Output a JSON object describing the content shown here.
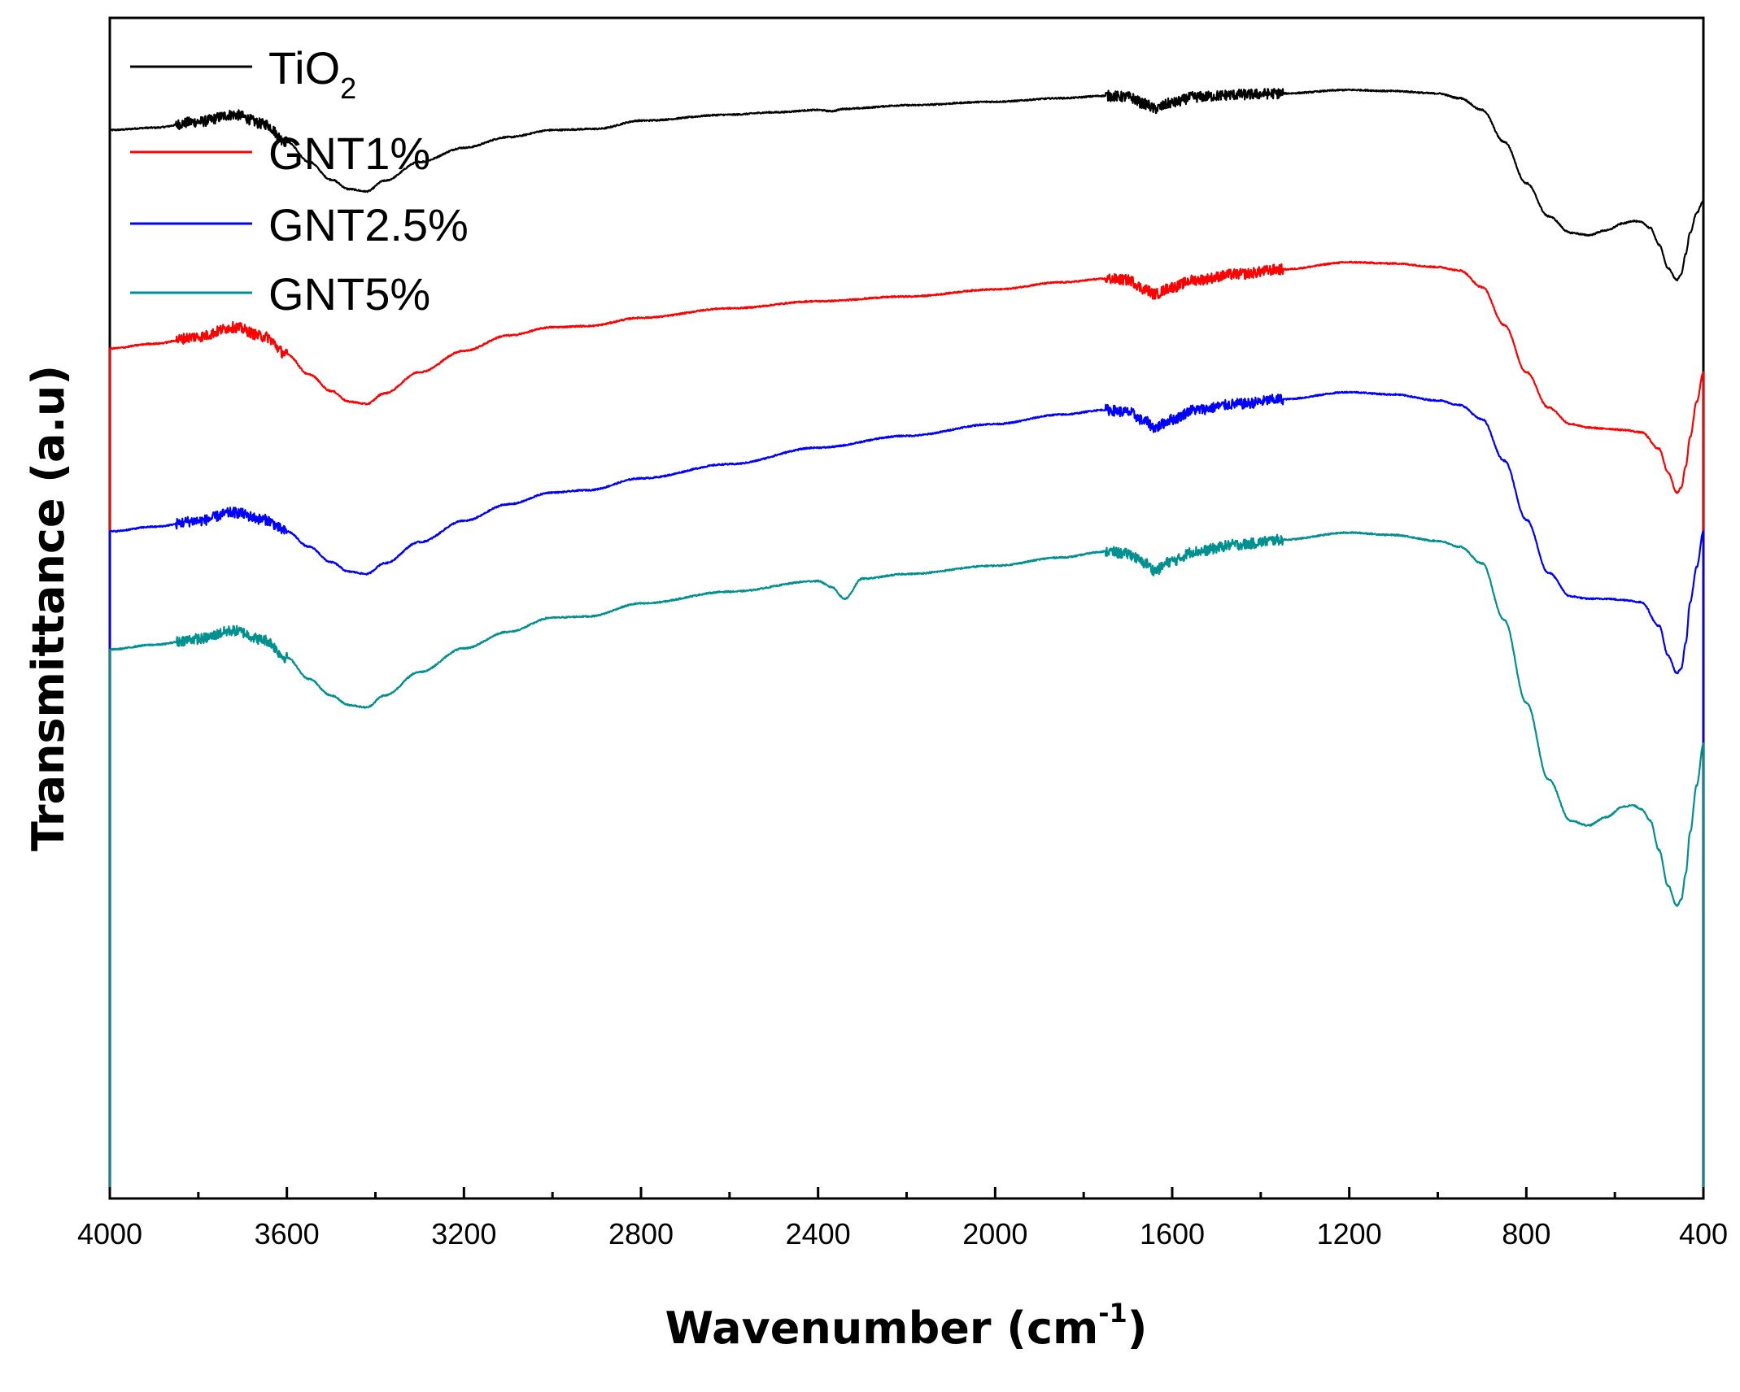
{
  "chart_data": {
    "type": "line",
    "title": "",
    "xlabel": "Wavenumber (cm",
    "xlabel_superscript": "-1",
    "xlabel_close": ")",
    "ylabel": "Transmittance (a.u)",
    "xlim": [
      4000,
      400
    ],
    "x_reversed": true,
    "y_ticks_visible": false,
    "x_major_ticks": [
      4000,
      3600,
      3200,
      2800,
      2400,
      2000,
      1600,
      1200,
      800,
      400
    ],
    "x_tick_labels": [
      "4000",
      "3600",
      "3200",
      "2800",
      "2400",
      "2000",
      "1600",
      "1200",
      "800",
      "400"
    ],
    "x_minor_step": 200,
    "legend_position": "top-left",
    "series": [
      {
        "name": "TiO2",
        "label_main": "TiO",
        "label_sub": "2",
        "color": "#000000",
        "noisy_regions": [
          [
            3850,
            3600
          ],
          [
            1750,
            1350
          ]
        ],
        "points": [
          [
            4000,
            90.5
          ],
          [
            3900,
            90.7
          ],
          [
            3800,
            91.2
          ],
          [
            3720,
            91.8
          ],
          [
            3650,
            91.0
          ],
          [
            3600,
            89.5
          ],
          [
            3550,
            87.8
          ],
          [
            3500,
            86.3
          ],
          [
            3460,
            85.5
          ],
          [
            3420,
            85.3
          ],
          [
            3380,
            86.2
          ],
          [
            3300,
            87.8
          ],
          [
            3200,
            89.0
          ],
          [
            3100,
            89.9
          ],
          [
            3000,
            90.5
          ],
          [
            2900,
            90.6
          ],
          [
            2800,
            91.3
          ],
          [
            2600,
            91.8
          ],
          [
            2500,
            92.0
          ],
          [
            2400,
            92.2
          ],
          [
            2370,
            92.1
          ],
          [
            2340,
            92.3
          ],
          [
            2200,
            92.6
          ],
          [
            2000,
            92.9
          ],
          [
            1850,
            93.2
          ],
          [
            1750,
            93.4
          ],
          [
            1700,
            93.3
          ],
          [
            1660,
            92.7
          ],
          [
            1640,
            92.3
          ],
          [
            1600,
            92.8
          ],
          [
            1550,
            93.3
          ],
          [
            1450,
            93.5
          ],
          [
            1350,
            93.6
          ],
          [
            1200,
            93.9
          ],
          [
            1100,
            93.8
          ],
          [
            1000,
            93.6
          ],
          [
            950,
            93.2
          ],
          [
            900,
            92.2
          ],
          [
            850,
            89.5
          ],
          [
            800,
            86.0
          ],
          [
            750,
            83.2
          ],
          [
            700,
            81.8
          ],
          [
            660,
            81.6
          ],
          [
            620,
            82.0
          ],
          [
            580,
            82.6
          ],
          [
            560,
            82.8
          ],
          [
            540,
            82.7
          ],
          [
            520,
            82.2
          ],
          [
            500,
            80.8
          ],
          [
            480,
            78.8
          ],
          [
            460,
            77.8
          ],
          [
            450,
            78.3
          ],
          [
            440,
            80.0
          ],
          [
            430,
            81.8
          ],
          [
            415,
            83.5
          ],
          [
            400,
            84.5
          ]
        ]
      },
      {
        "name": "GNT1%",
        "label_main": "GNT1%",
        "color": "#ff0000",
        "noisy_regions": [
          [
            3850,
            3600
          ],
          [
            1750,
            1350
          ]
        ],
        "points": [
          [
            4000,
            72.0
          ],
          [
            3900,
            72.4
          ],
          [
            3800,
            73.0
          ],
          [
            3720,
            73.8
          ],
          [
            3650,
            73.0
          ],
          [
            3600,
            71.5
          ],
          [
            3550,
            69.8
          ],
          [
            3500,
            68.4
          ],
          [
            3460,
            67.5
          ],
          [
            3420,
            67.3
          ],
          [
            3380,
            68.2
          ],
          [
            3300,
            70.0
          ],
          [
            3200,
            71.8
          ],
          [
            3100,
            73.1
          ],
          [
            3000,
            73.8
          ],
          [
            2920,
            73.9
          ],
          [
            2800,
            74.6
          ],
          [
            2600,
            75.4
          ],
          [
            2400,
            76.0
          ],
          [
            2200,
            76.4
          ],
          [
            2000,
            77.0
          ],
          [
            1850,
            77.6
          ],
          [
            1750,
            77.9
          ],
          [
            1700,
            77.8
          ],
          [
            1660,
            77.0
          ],
          [
            1640,
            76.6
          ],
          [
            1600,
            77.2
          ],
          [
            1550,
            77.8
          ],
          [
            1450,
            78.3
          ],
          [
            1350,
            78.7
          ],
          [
            1200,
            79.3
          ],
          [
            1100,
            79.2
          ],
          [
            1000,
            78.9
          ],
          [
            950,
            78.6
          ],
          [
            900,
            77.2
          ],
          [
            850,
            74.0
          ],
          [
            800,
            70.0
          ],
          [
            750,
            67.0
          ],
          [
            700,
            65.6
          ],
          [
            660,
            65.3
          ],
          [
            620,
            65.2
          ],
          [
            580,
            65.1
          ],
          [
            540,
            64.9
          ],
          [
            500,
            63.5
          ],
          [
            480,
            61.5
          ],
          [
            460,
            59.8
          ],
          [
            450,
            60.2
          ],
          [
            440,
            62.0
          ],
          [
            430,
            64.5
          ],
          [
            415,
            67.5
          ],
          [
            400,
            70.0
          ]
        ]
      },
      {
        "name": "GNT2.5%",
        "label_main": "GNT2.5%",
        "color": "#0000ff",
        "noisy_regions": [
          [
            3850,
            3600
          ],
          [
            1750,
            1350
          ]
        ],
        "points": [
          [
            4000,
            56.5
          ],
          [
            3900,
            56.9
          ],
          [
            3800,
            57.4
          ],
          [
            3720,
            58.1
          ],
          [
            3650,
            57.5
          ],
          [
            3600,
            56.5
          ],
          [
            3550,
            55.2
          ],
          [
            3500,
            53.9
          ],
          [
            3460,
            53.1
          ],
          [
            3420,
            52.9
          ],
          [
            3380,
            53.8
          ],
          [
            3300,
            55.6
          ],
          [
            3200,
            57.4
          ],
          [
            3100,
            58.8
          ],
          [
            3000,
            59.8
          ],
          [
            2920,
            60.0
          ],
          [
            2800,
            61.0
          ],
          [
            2600,
            62.2
          ],
          [
            2400,
            63.6
          ],
          [
            2200,
            64.6
          ],
          [
            2000,
            65.6
          ],
          [
            1850,
            66.4
          ],
          [
            1750,
            66.8
          ],
          [
            1700,
            66.6
          ],
          [
            1660,
            65.8
          ],
          [
            1640,
            65.3
          ],
          [
            1600,
            66.0
          ],
          [
            1550,
            66.8
          ],
          [
            1450,
            67.3
          ],
          [
            1350,
            67.7
          ],
          [
            1200,
            68.3
          ],
          [
            1100,
            68.1
          ],
          [
            1000,
            67.6
          ],
          [
            950,
            67.2
          ],
          [
            900,
            66.0
          ],
          [
            850,
            62.5
          ],
          [
            800,
            57.5
          ],
          [
            750,
            53.0
          ],
          [
            700,
            51.0
          ],
          [
            660,
            50.8
          ],
          [
            620,
            50.8
          ],
          [
            580,
            50.7
          ],
          [
            540,
            50.5
          ],
          [
            500,
            48.5
          ],
          [
            480,
            46.0
          ],
          [
            460,
            44.5
          ],
          [
            450,
            44.9
          ],
          [
            440,
            47.0
          ],
          [
            430,
            50.5
          ],
          [
            415,
            53.5
          ],
          [
            400,
            56.5
          ]
        ]
      },
      {
        "name": "GNT5%",
        "label_main": "GNT5%",
        "color": "#009090",
        "noisy_regions": [
          [
            3850,
            3600
          ],
          [
            1750,
            1350
          ]
        ],
        "points": [
          [
            4000,
            46.5
          ],
          [
            3900,
            46.9
          ],
          [
            3800,
            47.4
          ],
          [
            3720,
            48.1
          ],
          [
            3650,
            47.3
          ],
          [
            3600,
            45.8
          ],
          [
            3550,
            44.0
          ],
          [
            3500,
            42.6
          ],
          [
            3460,
            41.8
          ],
          [
            3420,
            41.6
          ],
          [
            3380,
            42.6
          ],
          [
            3300,
            44.6
          ],
          [
            3200,
            46.6
          ],
          [
            3100,
            48.0
          ],
          [
            3000,
            49.2
          ],
          [
            2920,
            49.3
          ],
          [
            2800,
            50.4
          ],
          [
            2600,
            51.4
          ],
          [
            2400,
            52.3
          ],
          [
            2370,
            51.8
          ],
          [
            2340,
            50.8
          ],
          [
            2300,
            52.5
          ],
          [
            2200,
            52.9
          ],
          [
            2000,
            53.6
          ],
          [
            1850,
            54.3
          ],
          [
            1750,
            54.8
          ],
          [
            1700,
            54.6
          ],
          [
            1660,
            53.8
          ],
          [
            1640,
            53.2
          ],
          [
            1600,
            54.0
          ],
          [
            1550,
            54.8
          ],
          [
            1450,
            55.4
          ],
          [
            1350,
            55.8
          ],
          [
            1200,
            56.4
          ],
          [
            1100,
            56.2
          ],
          [
            1000,
            55.7
          ],
          [
            950,
            55.2
          ],
          [
            900,
            53.8
          ],
          [
            850,
            49.0
          ],
          [
            800,
            42.0
          ],
          [
            750,
            35.5
          ],
          [
            700,
            32.0
          ],
          [
            660,
            31.6
          ],
          [
            620,
            32.3
          ],
          [
            580,
            33.2
          ],
          [
            560,
            33.3
          ],
          [
            540,
            33.0
          ],
          [
            520,
            32.0
          ],
          [
            500,
            29.5
          ],
          [
            480,
            26.5
          ],
          [
            460,
            24.8
          ],
          [
            450,
            25.3
          ],
          [
            440,
            27.5
          ],
          [
            430,
            31.0
          ],
          [
            415,
            35.0
          ],
          [
            400,
            38.5
          ]
        ]
      }
    ]
  }
}
